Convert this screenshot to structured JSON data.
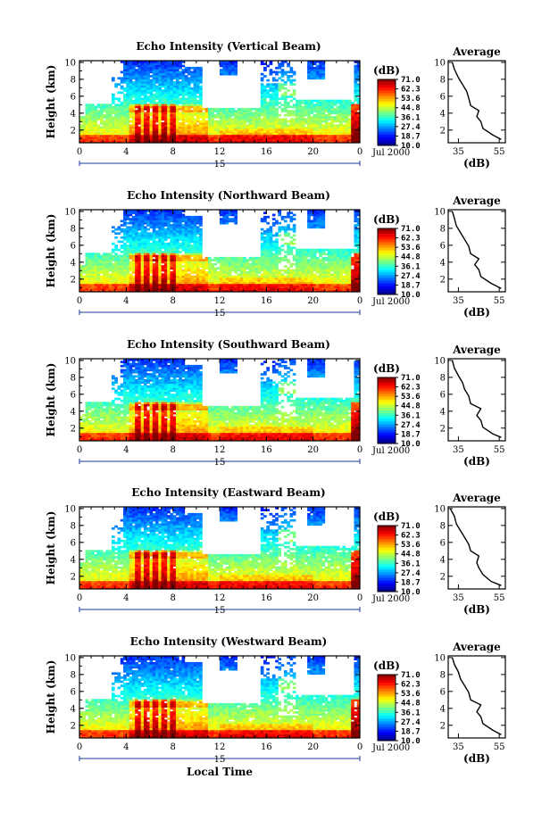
{
  "page_title": "",
  "chart_data": [
    {
      "type": "heatmap",
      "title": "Echo Intensity (Vertical Beam)",
      "ylabel": "Height (km)",
      "xlabel": "",
      "x_ticks": [
        "0",
        "4",
        "8",
        "12",
        "16",
        "20",
        "0"
      ],
      "y_ticks": [
        "2",
        "4",
        "6",
        "8",
        "10"
      ],
      "xlim": [
        0,
        24
      ],
      "ylim": [
        0.5,
        10.2
      ],
      "day_label": "15",
      "date_label": "Jul 2000",
      "colorbar": {
        "label": "(dB)",
        "levels": [
          "71.0",
          "62.3",
          "53.6",
          "44.8",
          "36.1",
          "27.4",
          "18.7",
          "10.0"
        ]
      },
      "average": {
        "title": "Average",
        "xlabel": "(dB)",
        "x_ticks": [
          "35",
          "55"
        ],
        "y_ticks": [
          "2",
          "4",
          "6",
          "8",
          "10"
        ],
        "xlim": [
          30,
          58
        ],
        "profile": [
          [
            56,
            0.9
          ],
          [
            52,
            1.4
          ],
          [
            47,
            2.2
          ],
          [
            46,
            3.0
          ],
          [
            44,
            3.6
          ],
          [
            45,
            4.3
          ],
          [
            41,
            4.9
          ],
          [
            40,
            5.8
          ],
          [
            39,
            6.6
          ],
          [
            37,
            7.4
          ],
          [
            35,
            8.2
          ],
          [
            33,
            9.2
          ],
          [
            32,
            10.0
          ]
        ]
      }
    },
    {
      "type": "heatmap",
      "title": "Echo Intensity (Northward Beam)",
      "ylabel": "Height (km)",
      "xlabel": "",
      "x_ticks": [
        "0",
        "4",
        "8",
        "12",
        "16",
        "20",
        "0"
      ],
      "y_ticks": [
        "2",
        "4",
        "6",
        "8",
        "10"
      ],
      "xlim": [
        0,
        24
      ],
      "ylim": [
        0.5,
        10.2
      ],
      "day_label": "15",
      "date_label": "Jul 2000",
      "colorbar": {
        "label": "(dB)",
        "levels": [
          "71.0",
          "62.3",
          "53.6",
          "44.8",
          "36.1",
          "27.4",
          "18.7",
          "10.0"
        ]
      },
      "average": {
        "title": "Average",
        "xlabel": "(dB)",
        "x_ticks": [
          "35",
          "55"
        ],
        "y_ticks": [
          "2",
          "4",
          "6",
          "8",
          "10"
        ],
        "xlim": [
          30,
          58
        ],
        "profile": [
          [
            56,
            0.9
          ],
          [
            51,
            1.5
          ],
          [
            46,
            2.3
          ],
          [
            45,
            3.1
          ],
          [
            43,
            3.7
          ],
          [
            45,
            4.4
          ],
          [
            41,
            5.0
          ],
          [
            40,
            5.9
          ],
          [
            38,
            6.7
          ],
          [
            36,
            7.5
          ],
          [
            34,
            8.3
          ],
          [
            33,
            9.2
          ],
          [
            32,
            10.0
          ]
        ]
      }
    },
    {
      "type": "heatmap",
      "title": "Echo Intensity (Southward Beam)",
      "ylabel": "Height (km)",
      "xlabel": "",
      "x_ticks": [
        "0",
        "4",
        "8",
        "12",
        "16",
        "20",
        "0"
      ],
      "y_ticks": [
        "2",
        "4",
        "6",
        "8",
        "10"
      ],
      "xlim": [
        0,
        24
      ],
      "ylim": [
        0.5,
        10.2
      ],
      "day_label": "15",
      "date_label": "Jul 2000",
      "colorbar": {
        "label": "(dB)",
        "levels": [
          "71.0",
          "62.3",
          "53.6",
          "44.8",
          "36.1",
          "27.4",
          "18.7",
          "10.0"
        ]
      },
      "average": {
        "title": "Average",
        "xlabel": "(dB)",
        "x_ticks": [
          "35",
          "55"
        ],
        "y_ticks": [
          "2",
          "4",
          "6",
          "8",
          "10"
        ],
        "xlim": [
          30,
          58
        ],
        "profile": [
          [
            56,
            0.9
          ],
          [
            52,
            1.3
          ],
          [
            47,
            2.1
          ],
          [
            46,
            2.9
          ],
          [
            44,
            3.5
          ],
          [
            46,
            4.3
          ],
          [
            41,
            4.9
          ],
          [
            40,
            5.8
          ],
          [
            38,
            6.6
          ],
          [
            37,
            7.4
          ],
          [
            35,
            8.2
          ],
          [
            33,
            9.1
          ],
          [
            32,
            10.0
          ]
        ]
      }
    },
    {
      "type": "heatmap",
      "title": "Echo Intensity (Eastward Beam)",
      "ylabel": "Height (km)",
      "xlabel": "",
      "x_ticks": [
        "0",
        "4",
        "8",
        "12",
        "16",
        "20",
        "0"
      ],
      "y_ticks": [
        "2",
        "4",
        "6",
        "8",
        "10"
      ],
      "xlim": [
        0,
        24
      ],
      "ylim": [
        0.5,
        10.2
      ],
      "day_label": "15",
      "date_label": "Jul 2000",
      "colorbar": {
        "label": "(dB)",
        "levels": [
          "71.0",
          "62.3",
          "53.6",
          "44.8",
          "36.1",
          "27.4",
          "18.7",
          "10.0"
        ]
      },
      "average": {
        "title": "Average",
        "xlabel": "(dB)",
        "x_ticks": [
          "35",
          "55"
        ],
        "y_ticks": [
          "2",
          "4",
          "6",
          "8",
          "10"
        ],
        "xlim": [
          30,
          58
        ],
        "profile": [
          [
            56,
            0.9
          ],
          [
            51,
            1.4
          ],
          [
            47,
            2.2
          ],
          [
            45,
            3.0
          ],
          [
            44,
            3.6
          ],
          [
            45,
            4.4
          ],
          [
            41,
            5.0
          ],
          [
            40,
            5.8
          ],
          [
            38,
            6.6
          ],
          [
            36,
            7.4
          ],
          [
            34,
            8.2
          ],
          [
            33,
            9.1
          ],
          [
            31,
            10.0
          ]
        ]
      }
    },
    {
      "type": "heatmap",
      "title": "Echo Intensity (Westward Beam)",
      "ylabel": "Height (km)",
      "xlabel": "Local Time",
      "x_ticks": [
        "0",
        "4",
        "8",
        "12",
        "16",
        "20",
        "0"
      ],
      "y_ticks": [
        "2",
        "4",
        "6",
        "8",
        "10"
      ],
      "xlim": [
        0,
        24
      ],
      "ylim": [
        0.5,
        10.2
      ],
      "day_label": "15",
      "date_label": "Jul 2000",
      "colorbar": {
        "label": "(dB)",
        "levels": [
          "71.0",
          "62.3",
          "53.6",
          "44.8",
          "36.1",
          "27.4",
          "18.7",
          "10.0"
        ]
      },
      "average": {
        "title": "Average",
        "xlabel": "(dB)",
        "x_ticks": [
          "35",
          "55"
        ],
        "y_ticks": [
          "2",
          "4",
          "6",
          "8",
          "10"
        ],
        "xlim": [
          30,
          58
        ],
        "profile": [
          [
            56,
            0.9
          ],
          [
            52,
            1.4
          ],
          [
            47,
            2.2
          ],
          [
            46,
            3.0
          ],
          [
            44,
            3.6
          ],
          [
            46,
            4.4
          ],
          [
            41,
            5.0
          ],
          [
            40,
            5.9
          ],
          [
            38,
            6.7
          ],
          [
            36,
            7.5
          ],
          [
            35,
            8.3
          ],
          [
            33,
            9.2
          ],
          [
            32,
            10.0
          ]
        ]
      }
    }
  ]
}
